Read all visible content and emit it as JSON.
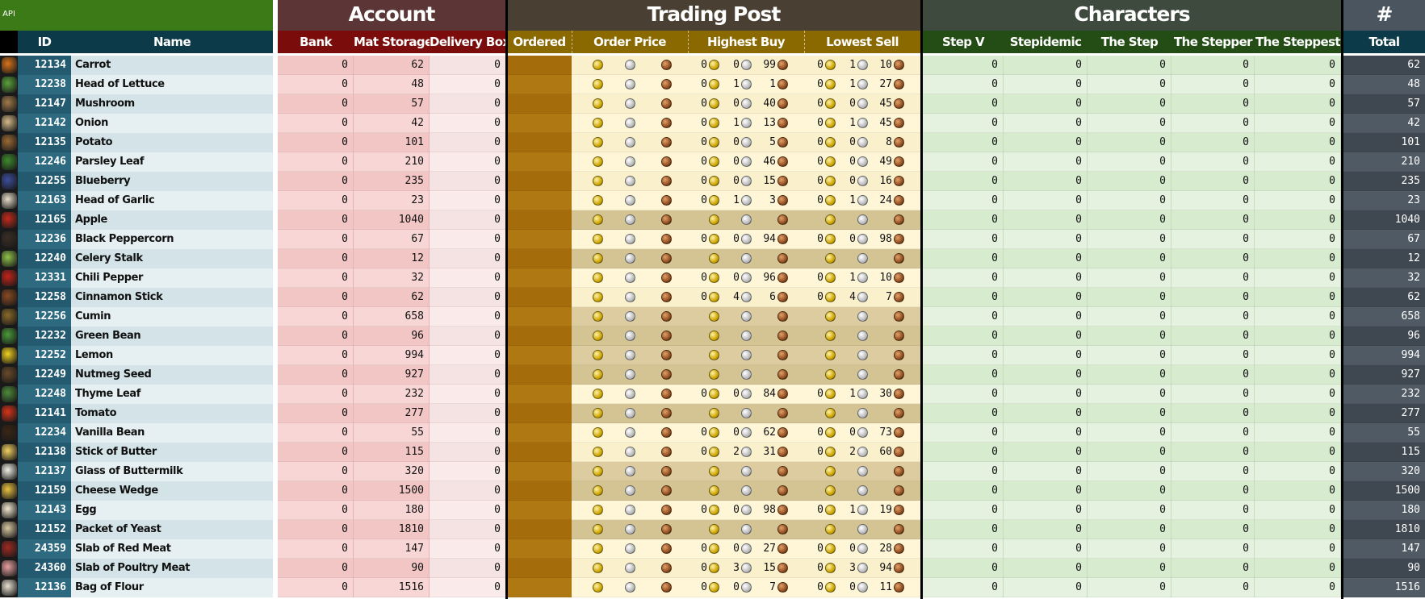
{
  "header": {
    "api_label": "API",
    "account_group": "Account",
    "trading_group": "Trading Post",
    "characters_group": "Characters",
    "total_group": "#",
    "columns": {
      "id": "ID",
      "name": "Name",
      "bank": "Bank",
      "mat_storage": "Mat Storage",
      "delivery_box": "Delivery Box",
      "ordered": "Ordered",
      "order_price": "Order Price",
      "highest_buy": "Highest Buy",
      "lowest_sell": "Lowest Sell",
      "step_v": "Step V",
      "stepidemic": "Stepidemic",
      "the_step": "The Step",
      "the_stepper": "The Stepper",
      "the_steppest": "The Steppest",
      "total": "Total"
    }
  },
  "colors": {
    "api_green": "#3c7a18",
    "account_header": "#5c3636",
    "account_sub": "#7a0c0c",
    "trading_header": "#4a3f33",
    "trading_sub": "#8a6a00",
    "characters_header": "#3d4a3d",
    "characters_sub": "#244d16",
    "total_header": "#4a5560",
    "id_header": "#0c3a48"
  },
  "items": [
    {
      "id": "12134",
      "name": "Carrot",
      "icon": "carrot-icon",
      "bank": "0",
      "mat": "62",
      "delivery": "0",
      "buy": [
        "0",
        "0",
        "99"
      ],
      "sell": [
        "0",
        "1",
        "10"
      ],
      "chars": [
        "0",
        "0",
        "0",
        "0",
        "0"
      ],
      "total": "62"
    },
    {
      "id": "12238",
      "name": "Head of Lettuce",
      "icon": "lettuce-icon",
      "bank": "0",
      "mat": "48",
      "delivery": "0",
      "buy": [
        "0",
        "1",
        "1"
      ],
      "sell": [
        "0",
        "1",
        "27"
      ],
      "chars": [
        "0",
        "0",
        "0",
        "0",
        "0"
      ],
      "total": "48"
    },
    {
      "id": "12147",
      "name": "Mushroom",
      "icon": "mushroom-icon",
      "bank": "0",
      "mat": "57",
      "delivery": "0",
      "buy": [
        "0",
        "0",
        "40"
      ],
      "sell": [
        "0",
        "0",
        "45"
      ],
      "chars": [
        "0",
        "0",
        "0",
        "0",
        "0"
      ],
      "total": "57"
    },
    {
      "id": "12142",
      "name": "Onion",
      "icon": "onion-icon",
      "bank": "0",
      "mat": "42",
      "delivery": "0",
      "buy": [
        "0",
        "1",
        "13"
      ],
      "sell": [
        "0",
        "1",
        "45"
      ],
      "chars": [
        "0",
        "0",
        "0",
        "0",
        "0"
      ],
      "total": "42"
    },
    {
      "id": "12135",
      "name": "Potato",
      "icon": "potato-icon",
      "bank": "0",
      "mat": "101",
      "delivery": "0",
      "buy": [
        "0",
        "0",
        "5"
      ],
      "sell": [
        "0",
        "0",
        "8"
      ],
      "chars": [
        "0",
        "0",
        "0",
        "0",
        "0"
      ],
      "total": "101"
    },
    {
      "id": "12246",
      "name": "Parsley Leaf",
      "icon": "parsley-icon",
      "bank": "0",
      "mat": "210",
      "delivery": "0",
      "buy": [
        "0",
        "0",
        "46"
      ],
      "sell": [
        "0",
        "0",
        "49"
      ],
      "chars": [
        "0",
        "0",
        "0",
        "0",
        "0"
      ],
      "total": "210"
    },
    {
      "id": "12255",
      "name": "Blueberry",
      "icon": "blueberry-icon",
      "bank": "0",
      "mat": "235",
      "delivery": "0",
      "buy": [
        "0",
        "0",
        "15"
      ],
      "sell": [
        "0",
        "0",
        "16"
      ],
      "chars": [
        "0",
        "0",
        "0",
        "0",
        "0"
      ],
      "total": "235"
    },
    {
      "id": "12163",
      "name": "Head of Garlic",
      "icon": "garlic-icon",
      "bank": "0",
      "mat": "23",
      "delivery": "0",
      "buy": [
        "0",
        "1",
        "3"
      ],
      "sell": [
        "0",
        "1",
        "24"
      ],
      "chars": [
        "0",
        "0",
        "0",
        "0",
        "0"
      ],
      "total": "23"
    },
    {
      "id": "12165",
      "name": "Apple",
      "icon": "apple-icon",
      "bank": "0",
      "mat": "1040",
      "delivery": "0",
      "buy": null,
      "sell": null,
      "chars": [
        "0",
        "0",
        "0",
        "0",
        "0"
      ],
      "total": "1040"
    },
    {
      "id": "12236",
      "name": "Black Peppercorn",
      "icon": "peppercorn-icon",
      "bank": "0",
      "mat": "67",
      "delivery": "0",
      "buy": [
        "0",
        "0",
        "94"
      ],
      "sell": [
        "0",
        "0",
        "98"
      ],
      "chars": [
        "0",
        "0",
        "0",
        "0",
        "0"
      ],
      "total": "67"
    },
    {
      "id": "12240",
      "name": "Celery Stalk",
      "icon": "celery-icon",
      "bank": "0",
      "mat": "12",
      "delivery": "0",
      "buy": null,
      "sell": null,
      "chars": [
        "0",
        "0",
        "0",
        "0",
        "0"
      ],
      "total": "12"
    },
    {
      "id": "12331",
      "name": "Chili Pepper",
      "icon": "chili-icon",
      "bank": "0",
      "mat": "32",
      "delivery": "0",
      "buy": [
        "0",
        "0",
        "96"
      ],
      "sell": [
        "0",
        "1",
        "10"
      ],
      "chars": [
        "0",
        "0",
        "0",
        "0",
        "0"
      ],
      "total": "32"
    },
    {
      "id": "12258",
      "name": "Cinnamon Stick",
      "icon": "cinnamon-icon",
      "bank": "0",
      "mat": "62",
      "delivery": "0",
      "buy": [
        "0",
        "4",
        "6"
      ],
      "sell": [
        "0",
        "4",
        "7"
      ],
      "chars": [
        "0",
        "0",
        "0",
        "0",
        "0"
      ],
      "total": "62"
    },
    {
      "id": "12256",
      "name": "Cumin",
      "icon": "cumin-icon",
      "bank": "0",
      "mat": "658",
      "delivery": "0",
      "buy": null,
      "sell": null,
      "chars": [
        "0",
        "0",
        "0",
        "0",
        "0"
      ],
      "total": "658"
    },
    {
      "id": "12232",
      "name": "Green Bean",
      "icon": "green-bean-icon",
      "bank": "0",
      "mat": "96",
      "delivery": "0",
      "buy": null,
      "sell": null,
      "chars": [
        "0",
        "0",
        "0",
        "0",
        "0"
      ],
      "total": "96"
    },
    {
      "id": "12252",
      "name": "Lemon",
      "icon": "lemon-icon",
      "bank": "0",
      "mat": "994",
      "delivery": "0",
      "buy": null,
      "sell": null,
      "chars": [
        "0",
        "0",
        "0",
        "0",
        "0"
      ],
      "total": "994"
    },
    {
      "id": "12249",
      "name": "Nutmeg Seed",
      "icon": "nutmeg-icon",
      "bank": "0",
      "mat": "927",
      "delivery": "0",
      "buy": null,
      "sell": null,
      "chars": [
        "0",
        "0",
        "0",
        "0",
        "0"
      ],
      "total": "927"
    },
    {
      "id": "12248",
      "name": "Thyme Leaf",
      "icon": "thyme-icon",
      "bank": "0",
      "mat": "232",
      "delivery": "0",
      "buy": [
        "0",
        "0",
        "84"
      ],
      "sell": [
        "0",
        "1",
        "30"
      ],
      "chars": [
        "0",
        "0",
        "0",
        "0",
        "0"
      ],
      "total": "232"
    },
    {
      "id": "12141",
      "name": "Tomato",
      "icon": "tomato-icon",
      "bank": "0",
      "mat": "277",
      "delivery": "0",
      "buy": null,
      "sell": null,
      "chars": [
        "0",
        "0",
        "0",
        "0",
        "0"
      ],
      "total": "277"
    },
    {
      "id": "12234",
      "name": "Vanilla Bean",
      "icon": "vanilla-icon",
      "bank": "0",
      "mat": "55",
      "delivery": "0",
      "buy": [
        "0",
        "0",
        "62"
      ],
      "sell": [
        "0",
        "0",
        "73"
      ],
      "chars": [
        "0",
        "0",
        "0",
        "0",
        "0"
      ],
      "total": "55"
    },
    {
      "id": "12138",
      "name": "Stick of Butter",
      "icon": "butter-icon",
      "bank": "0",
      "mat": "115",
      "delivery": "0",
      "buy": [
        "0",
        "2",
        "31"
      ],
      "sell": [
        "0",
        "2",
        "60"
      ],
      "chars": [
        "0",
        "0",
        "0",
        "0",
        "0"
      ],
      "total": "115"
    },
    {
      "id": "12137",
      "name": "Glass of Buttermilk",
      "icon": "buttermilk-icon",
      "bank": "0",
      "mat": "320",
      "delivery": "0",
      "buy": null,
      "sell": null,
      "chars": [
        "0",
        "0",
        "0",
        "0",
        "0"
      ],
      "total": "320"
    },
    {
      "id": "12159",
      "name": "Cheese Wedge",
      "icon": "cheese-icon",
      "bank": "0",
      "mat": "1500",
      "delivery": "0",
      "buy": null,
      "sell": null,
      "chars": [
        "0",
        "0",
        "0",
        "0",
        "0"
      ],
      "total": "1500"
    },
    {
      "id": "12143",
      "name": "Egg",
      "icon": "egg-icon",
      "bank": "0",
      "mat": "180",
      "delivery": "0",
      "buy": [
        "0",
        "0",
        "98"
      ],
      "sell": [
        "0",
        "1",
        "19"
      ],
      "chars": [
        "0",
        "0",
        "0",
        "0",
        "0"
      ],
      "total": "180"
    },
    {
      "id": "12152",
      "name": "Packet of Yeast",
      "icon": "yeast-icon",
      "bank": "0",
      "mat": "1810",
      "delivery": "0",
      "buy": null,
      "sell": null,
      "chars": [
        "0",
        "0",
        "0",
        "0",
        "0"
      ],
      "total": "1810"
    },
    {
      "id": "24359",
      "name": "Slab of Red Meat",
      "icon": "red-meat-icon",
      "bank": "0",
      "mat": "147",
      "delivery": "0",
      "buy": [
        "0",
        "0",
        "27"
      ],
      "sell": [
        "0",
        "0",
        "28"
      ],
      "chars": [
        "0",
        "0",
        "0",
        "0",
        "0"
      ],
      "total": "147"
    },
    {
      "id": "24360",
      "name": "Slab of Poultry Meat",
      "icon": "poultry-meat-icon",
      "bank": "0",
      "mat": "90",
      "delivery": "0",
      "buy": [
        "0",
        "3",
        "15"
      ],
      "sell": [
        "0",
        "3",
        "94"
      ],
      "chars": [
        "0",
        "0",
        "0",
        "0",
        "0"
      ],
      "total": "90"
    },
    {
      "id": "12136",
      "name": "Bag of Flour",
      "icon": "flour-icon",
      "bank": "0",
      "mat": "1516",
      "delivery": "0",
      "buy": [
        "0",
        "0",
        "7"
      ],
      "sell": [
        "0",
        "0",
        "11"
      ],
      "chars": [
        "0",
        "0",
        "0",
        "0",
        "0"
      ],
      "total": "1516"
    }
  ]
}
